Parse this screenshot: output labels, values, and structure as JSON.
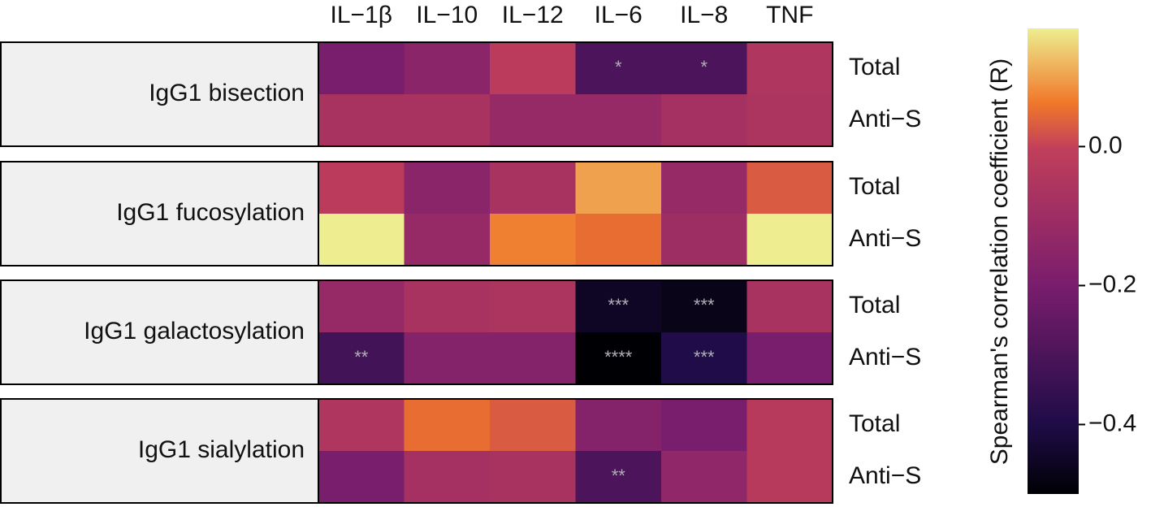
{
  "chart_data": {
    "type": "heatmap",
    "colormap": "inferno",
    "columns": [
      "IL−1β",
      "IL−10",
      "IL−12",
      "IL−6",
      "IL−8",
      "TNF"
    ],
    "groups": [
      {
        "label": "IgG1 bisection",
        "rows": [
          "Total",
          "Anti−S"
        ],
        "values": [
          [
            -0.2,
            -0.15,
            -0.02,
            -0.3,
            -0.3,
            -0.05
          ],
          [
            -0.07,
            -0.07,
            -0.12,
            -0.12,
            -0.08,
            -0.06
          ]
        ],
        "annotations": [
          [
            null,
            null,
            null,
            "*",
            "*",
            null
          ],
          [
            null,
            null,
            null,
            null,
            null,
            null
          ]
        ]
      },
      {
        "label": "IgG1 fucosylation",
        "rows": [
          "Total",
          "Anti−S"
        ],
        "values": [
          [
            -0.02,
            -0.15,
            -0.07,
            0.1,
            -0.12,
            0.03
          ],
          [
            0.17,
            -0.12,
            0.07,
            0.05,
            -0.1,
            0.17
          ]
        ],
        "annotations": [
          [
            null,
            null,
            null,
            null,
            null,
            null
          ],
          [
            null,
            null,
            null,
            null,
            null,
            null
          ]
        ]
      },
      {
        "label": "IgG1 galactosylation",
        "rows": [
          "Total",
          "Anti−S"
        ],
        "values": [
          [
            -0.12,
            -0.07,
            -0.06,
            -0.45,
            -0.47,
            -0.07
          ],
          [
            -0.32,
            -0.17,
            -0.17,
            -0.5,
            -0.4,
            -0.2
          ]
        ],
        "annotations": [
          [
            null,
            null,
            null,
            "***",
            "***",
            null
          ],
          [
            "**",
            null,
            null,
            "****",
            "***",
            null
          ]
        ]
      },
      {
        "label": "IgG1 sialylation",
        "rows": [
          "Total",
          "Anti−S"
        ],
        "values": [
          [
            -0.05,
            0.05,
            0.03,
            -0.17,
            -0.2,
            -0.03
          ],
          [
            -0.2,
            -0.08,
            -0.07,
            -0.3,
            -0.14,
            -0.03
          ]
        ],
        "annotations": [
          [
            null,
            null,
            null,
            null,
            null,
            null
          ],
          [
            null,
            null,
            null,
            "**",
            null,
            null
          ]
        ]
      }
    ],
    "colorbar": {
      "label": "Spearman's correlation coefficient (R)",
      "lim": [
        -0.5,
        0.17
      ],
      "ticks": [
        {
          "value": 0,
          "label": "0.0"
        },
        {
          "value": -0.2,
          "label": "−0.2"
        },
        {
          "value": -0.4,
          "label": "−0.4"
        }
      ]
    }
  }
}
